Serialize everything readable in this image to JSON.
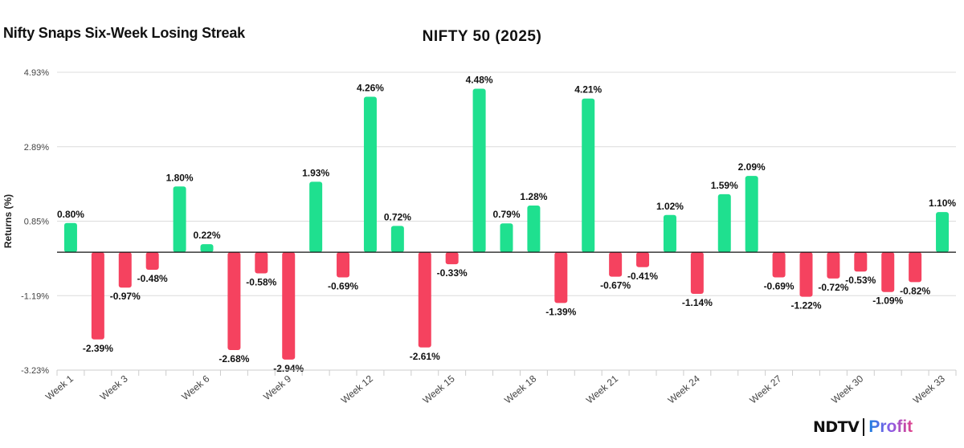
{
  "headline": "Nifty Snaps Six-Week Losing Streak",
  "logo": {
    "brand": "NDTV",
    "sub": "Profit"
  },
  "chart_data": {
    "type": "bar",
    "title": "NIFTY 50 (2025)",
    "ylabel": "Returns (%)",
    "xlabel": "",
    "ylim": [
      -3.23,
      4.93
    ],
    "yticks": [
      "-3.23%",
      "-1.19%",
      "0.85%",
      "2.89%",
      "4.93%"
    ],
    "ytick_values": [
      -3.23,
      -1.19,
      0.85,
      2.89,
      4.93
    ],
    "grid": true,
    "categories": [
      "Week 1",
      "Week 2",
      "Week 3",
      "Week 4",
      "Week 5",
      "Week 6",
      "Week 7",
      "Week 8",
      "Week 9",
      "Week 10",
      "Week 11",
      "Week 12",
      "Week 13",
      "Week 14",
      "Week 15",
      "Week 16",
      "Week 17",
      "Week 18",
      "Week 19",
      "Week 20",
      "Week 21",
      "Week 22",
      "Week 23",
      "Week 24",
      "Week 25",
      "Week 26",
      "Week 27",
      "Week 28",
      "Week 29",
      "Week 30",
      "Week 31",
      "Week 32",
      "Week 33"
    ],
    "shown_xtick_labels": [
      "Week 1",
      "Week 3",
      "Week 6",
      "Week 9",
      "Week 12",
      "Week 15",
      "Week 18",
      "Week 21",
      "Week 24",
      "Week 27",
      "Week 30",
      "Week 33"
    ],
    "values": [
      0.8,
      -2.39,
      -0.97,
      -0.48,
      1.8,
      0.22,
      -2.68,
      -0.58,
      -2.94,
      1.93,
      -0.69,
      4.26,
      0.72,
      -2.61,
      -0.33,
      4.48,
      0.79,
      1.28,
      -1.39,
      4.21,
      -0.67,
      -0.41,
      1.02,
      -1.14,
      1.59,
      2.09,
      -0.69,
      -1.22,
      -0.72,
      -0.53,
      -1.09,
      -0.82,
      1.1
    ],
    "data_labels": [
      "0.80%",
      "-2.39%",
      "-0.97%",
      "-0.48%",
      "1.80%",
      "0.22%",
      "-2.68%",
      "-0.58%",
      "-2.94%",
      "1.93%",
      "-0.69%",
      "4.26%",
      "0.72%",
      "-2.61%",
      "-0.33%",
      "4.48%",
      "0.79%",
      "1.28%",
      "-1.39%",
      "4.21%",
      "-0.67%",
      "-0.41%",
      "1.02%",
      "-1.14%",
      "1.59%",
      "2.09%",
      "-0.69%",
      "-1.22%",
      "-0.72%",
      "-0.53%",
      "-1.09%",
      "-0.82%",
      "1.10%"
    ],
    "colors": {
      "positive": "#1fe08f",
      "negative": "#f5425f"
    }
  }
}
